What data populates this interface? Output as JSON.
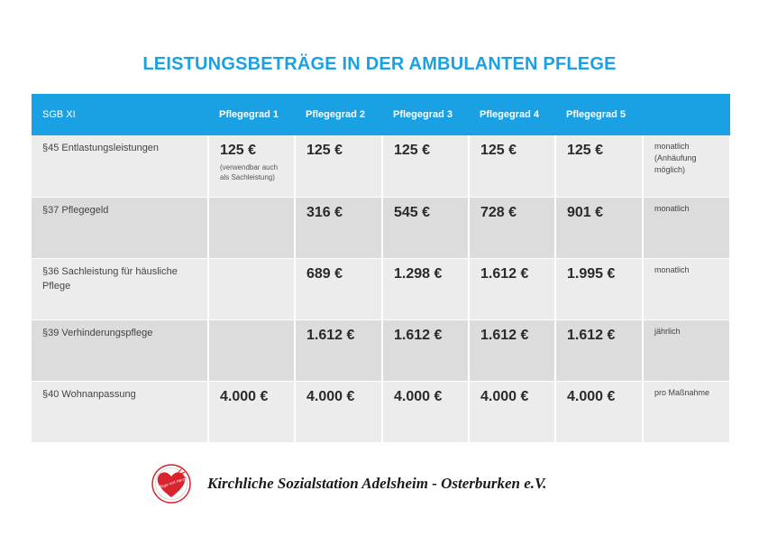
{
  "title": "LEISTUNGSBETRÄGE IN DER AMBULANTEN PFLEGE",
  "table": {
    "headers": [
      "SGB XI",
      "Pflegegrad 1",
      "Pflegegrad 2",
      "Pflegegrad 3",
      "Pflegegrad 4",
      "Pflegegrad 5",
      ""
    ],
    "rows": [
      {
        "label": "§45 Entlastungsleistungen",
        "values": [
          "125 €",
          "125 €",
          "125 €",
          "125 €",
          "125 €"
        ],
        "sub": "(verwendbar auch als Sachleistung)",
        "note": "monatlich (Anhäufung möglich)"
      },
      {
        "label": "§37 Pflegegeld",
        "values": [
          "",
          "316 €",
          "545 €",
          "728 €",
          "901 €"
        ],
        "note": "monatlich"
      },
      {
        "label": "§36 Sachleistung für häusliche Pflege",
        "values": [
          "",
          "689 €",
          "1.298 €",
          "1.612 €",
          "1.995 €"
        ],
        "note": "monatlich"
      },
      {
        "label": "§39 Verhinderungspflege",
        "values": [
          "",
          "1.612 €",
          "1.612 €",
          "1.612 €",
          "1.612 €"
        ],
        "note": "jährlich"
      },
      {
        "label": "§40 Wohnanpassung",
        "values": [
          "4.000 €",
          "4.000 €",
          "4.000 €",
          "4.000 €",
          "4.000 €"
        ],
        "note": "pro Maßnahme"
      }
    ]
  },
  "footer": {
    "logo_icon": "heart-logo-icon",
    "logo_text": "Pflege mit Herz",
    "organization": "Kirchliche Sozialstation Adelsheim - Osterburken e.V."
  },
  "colors": {
    "accent": "#1aa1e4",
    "row_light": "#ececec",
    "row_dark": "#dcdcdc",
    "logo_red": "#d9232d"
  }
}
